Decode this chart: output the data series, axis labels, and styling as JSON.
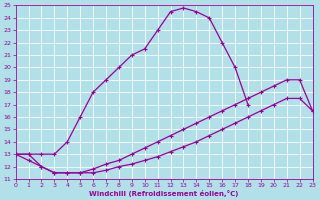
{
  "xlabel": "Windchill (Refroidissement éolien,°C)",
  "bg_color": "#b2e0e8",
  "line_color": "#990099",
  "grid_color": "#ffffff",
  "xlim": [
    0,
    23
  ],
  "ylim": [
    11,
    25
  ],
  "xticks": [
    0,
    1,
    2,
    3,
    4,
    5,
    6,
    7,
    8,
    9,
    10,
    11,
    12,
    13,
    14,
    15,
    16,
    17,
    18,
    19,
    20,
    21,
    22,
    23
  ],
  "yticks": [
    11,
    12,
    13,
    14,
    15,
    16,
    17,
    18,
    19,
    20,
    21,
    22,
    23,
    24,
    25
  ],
  "line1_x": [
    0,
    1,
    2,
    3,
    4,
    5,
    6,
    7,
    8,
    9,
    10,
    11,
    12,
    13,
    14,
    15,
    16,
    17,
    18
  ],
  "line1_y": [
    13,
    13,
    13,
    13,
    14,
    16,
    18,
    19,
    20,
    21,
    21.5,
    23,
    24.5,
    24.8,
    24.5,
    24,
    22,
    20,
    17
  ],
  "line2_x": [
    0,
    1,
    2,
    3,
    4,
    5,
    6,
    7,
    8,
    9,
    10,
    11,
    12,
    13,
    14,
    15,
    16,
    17,
    18,
    19,
    20,
    21,
    22,
    23
  ],
  "line2_y": [
    13,
    13,
    12,
    11.5,
    11.5,
    11.5,
    11.8,
    12.2,
    12.5,
    13,
    13.5,
    14,
    14.5,
    15,
    15.5,
    16,
    16.5,
    17,
    17.5,
    18,
    18.5,
    19,
    19,
    16.5
  ],
  "line3_x": [
    0,
    1,
    2,
    3,
    4,
    5,
    6,
    7,
    8,
    9,
    10,
    11,
    12,
    13,
    14,
    15,
    16,
    17,
    18,
    19,
    20,
    21,
    22,
    23
  ],
  "line3_y": [
    13,
    12.5,
    12,
    11.5,
    11.5,
    11.5,
    11.5,
    11.7,
    12,
    12.2,
    12.5,
    12.8,
    13.2,
    13.6,
    14,
    14.5,
    15,
    15.5,
    16,
    16.5,
    17,
    17.5,
    17.5,
    16.5
  ]
}
